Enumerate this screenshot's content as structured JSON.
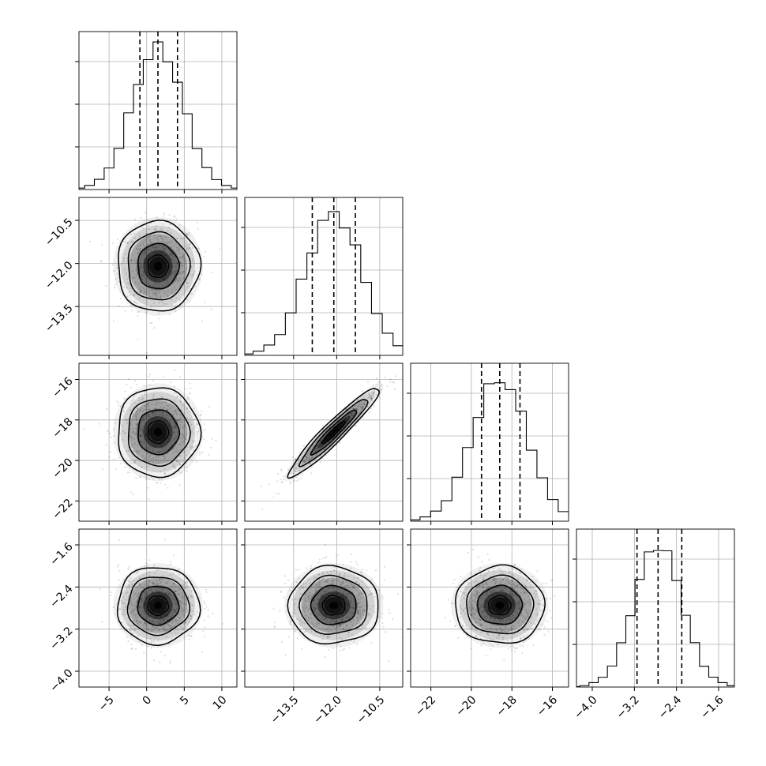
{
  "chart_data": {
    "type": "corner",
    "grid": true,
    "n_params": 4,
    "params": [
      {
        "label": "",
        "mean": 1.5,
        "sd": 2.6,
        "range": [
          -9,
          12
        ],
        "ticks": [
          -5,
          0,
          5,
          10
        ],
        "tick_labels": [
          "−5",
          "0",
          "5",
          "10"
        ],
        "quantiles": [
          -0.9,
          1.5,
          4.1
        ]
      },
      {
        "label": "",
        "mean": -12.1,
        "sd": 0.75,
        "range": [
          -15.2,
          -9.7
        ],
        "ticks": [
          -13.5,
          -12.0,
          -10.5
        ],
        "tick_labels": [
          "−13.5",
          "−12.0",
          "−10.5"
        ],
        "quantiles": [
          -12.85,
          -12.1,
          -11.35
        ]
      },
      {
        "label": "",
        "mean": -18.6,
        "sd": 1.05,
        "range": [
          -23.0,
          -15.2
        ],
        "ticks": [
          -22,
          -20,
          -18,
          -16
        ],
        "tick_labels": [
          "−22",
          "−20",
          "−18",
          "−16"
        ],
        "quantiles": [
          -19.5,
          -18.6,
          -17.6
        ]
      },
      {
        "label": "",
        "mean": -2.75,
        "sd": 0.35,
        "range": [
          -4.3,
          -1.3
        ],
        "ticks": [
          -4.0,
          -3.2,
          -2.4,
          -1.6
        ],
        "tick_labels": [
          "−4.0",
          "−3.2",
          "−2.4",
          "−1.6"
        ],
        "quantiles": [
          -3.15,
          -2.75,
          -2.3
        ]
      }
    ],
    "histogram_density": [
      0.003,
      0.01,
      0.03,
      0.07,
      0.15,
      0.3,
      0.52,
      0.75,
      0.93,
      1.0,
      0.93,
      0.75,
      0.52,
      0.3,
      0.15,
      0.07,
      0.03,
      0.01,
      0.003
    ],
    "correlations": {
      "1-2": 0.95
    },
    "contour_levels_sigma": [
      0.5,
      1.0,
      1.5,
      2.0
    ]
  }
}
